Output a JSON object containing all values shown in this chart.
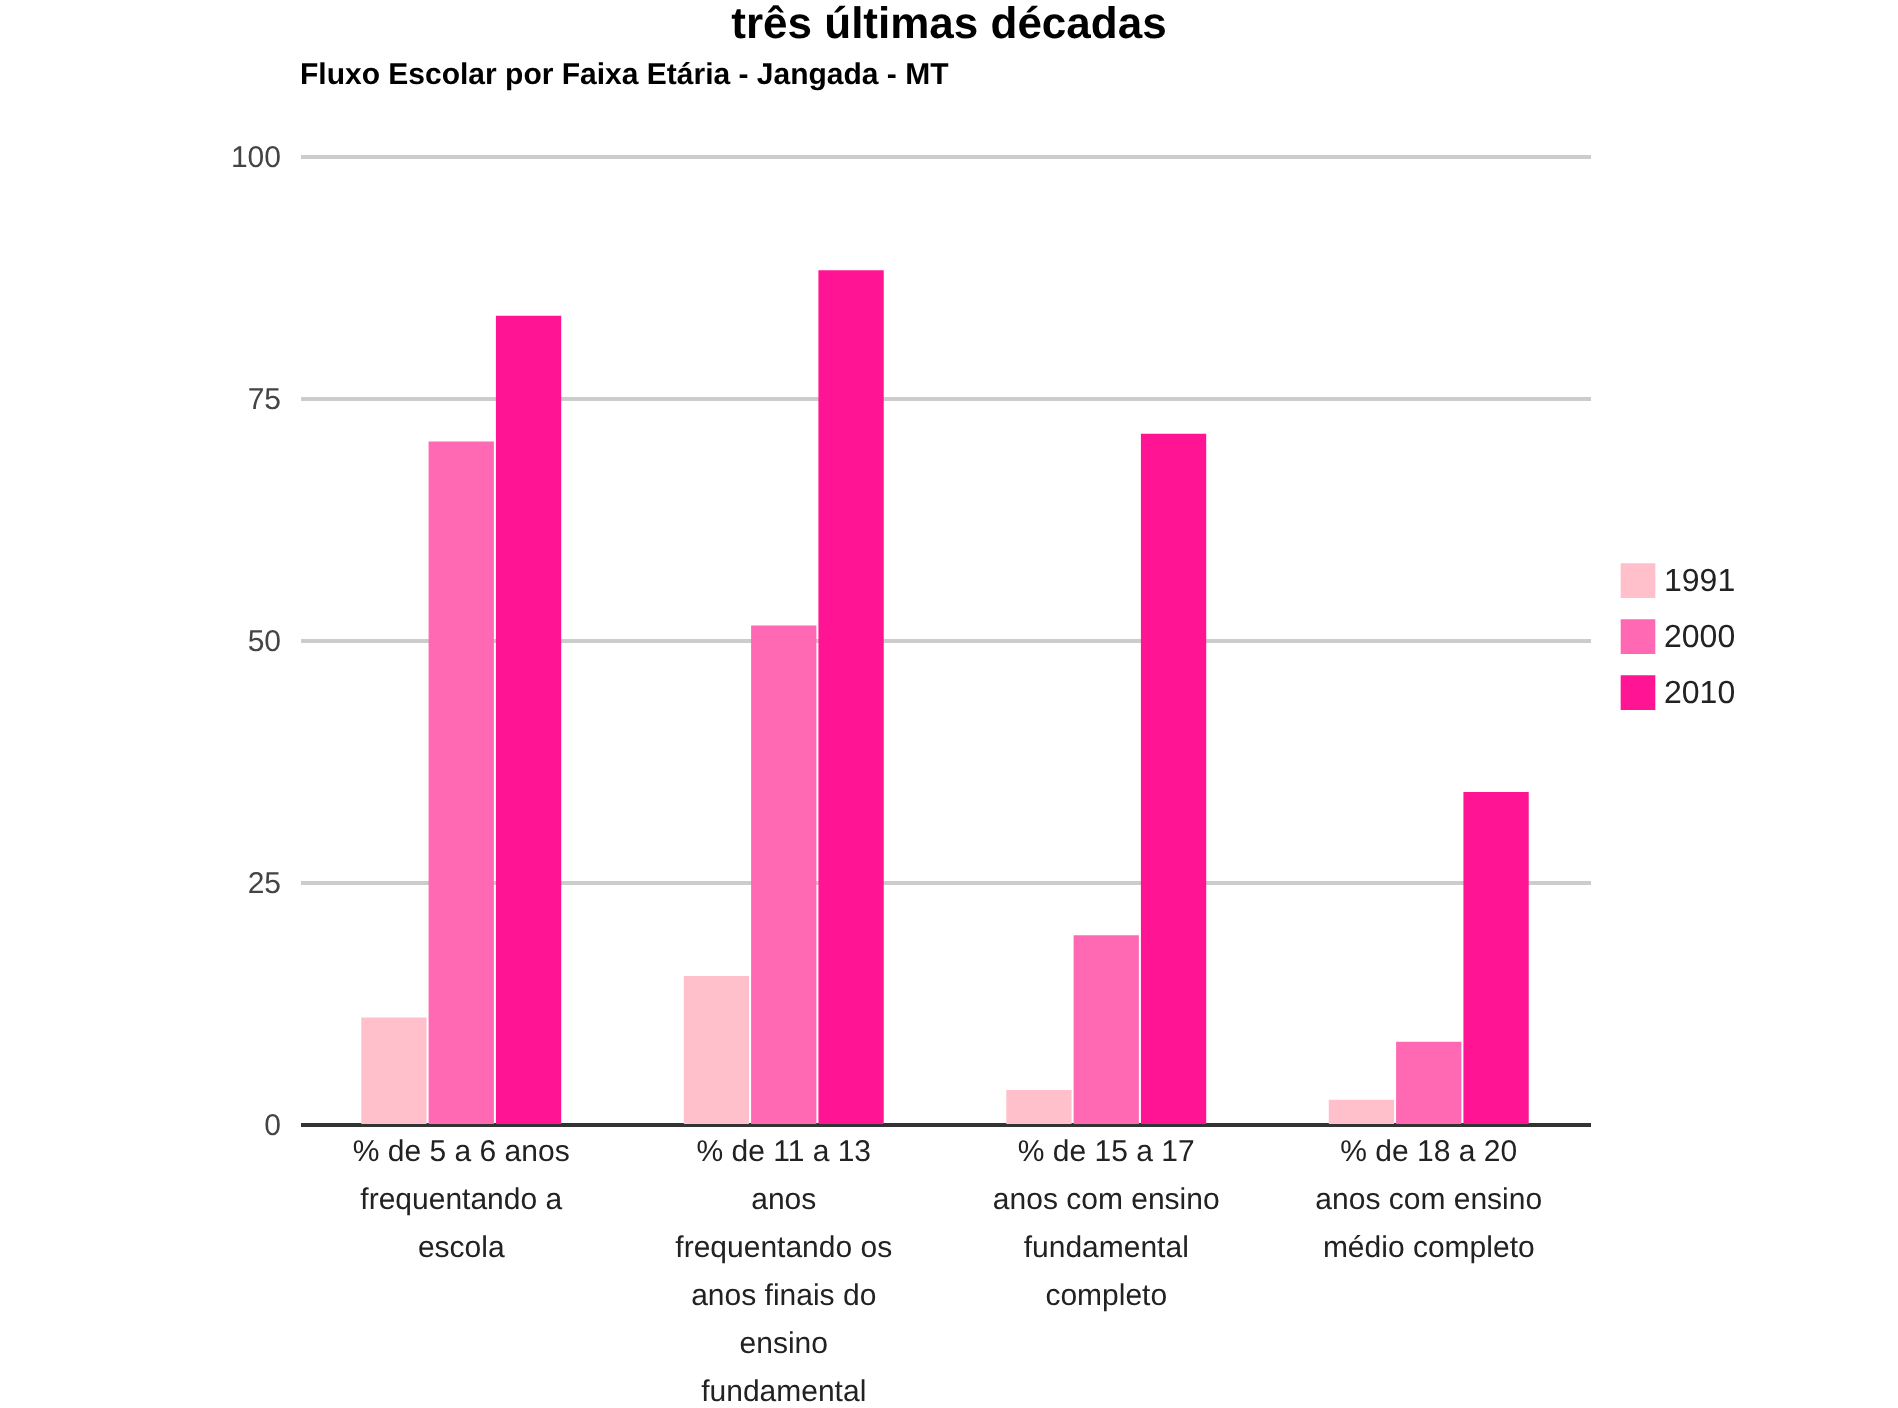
{
  "chart_data": {
    "type": "bar",
    "title": "Fluxo Escolar por Faixa Etária - Jangada - MT",
    "annotations": [
      "três últimas décadas"
    ],
    "categories": [
      "% de 5 a 6 anos frequentando a escola",
      "% de 11 a 13 anos frequentando os anos finais do ensino fundamental",
      "% de 15 a 17 anos com ensino fundamental completo",
      "% de 18 a 20 anos com ensino médio completo"
    ],
    "series": [
      {
        "name": "1991",
        "color": "#ffc0cb",
        "values": [
          11,
          15.3,
          3.5,
          2.5
        ]
      },
      {
        "name": "2000",
        "color": "#ff69b4",
        "values": [
          70.5,
          51.5,
          19.5,
          8.5
        ]
      },
      {
        "name": "2010",
        "color": "#ff1493",
        "values": [
          83.5,
          88.2,
          71.3,
          34.3
        ]
      }
    ],
    "ylim": [
      0,
      100
    ],
    "yticks": [
      0,
      25,
      50,
      75,
      100
    ],
    "grid": "y",
    "legend": "right"
  }
}
